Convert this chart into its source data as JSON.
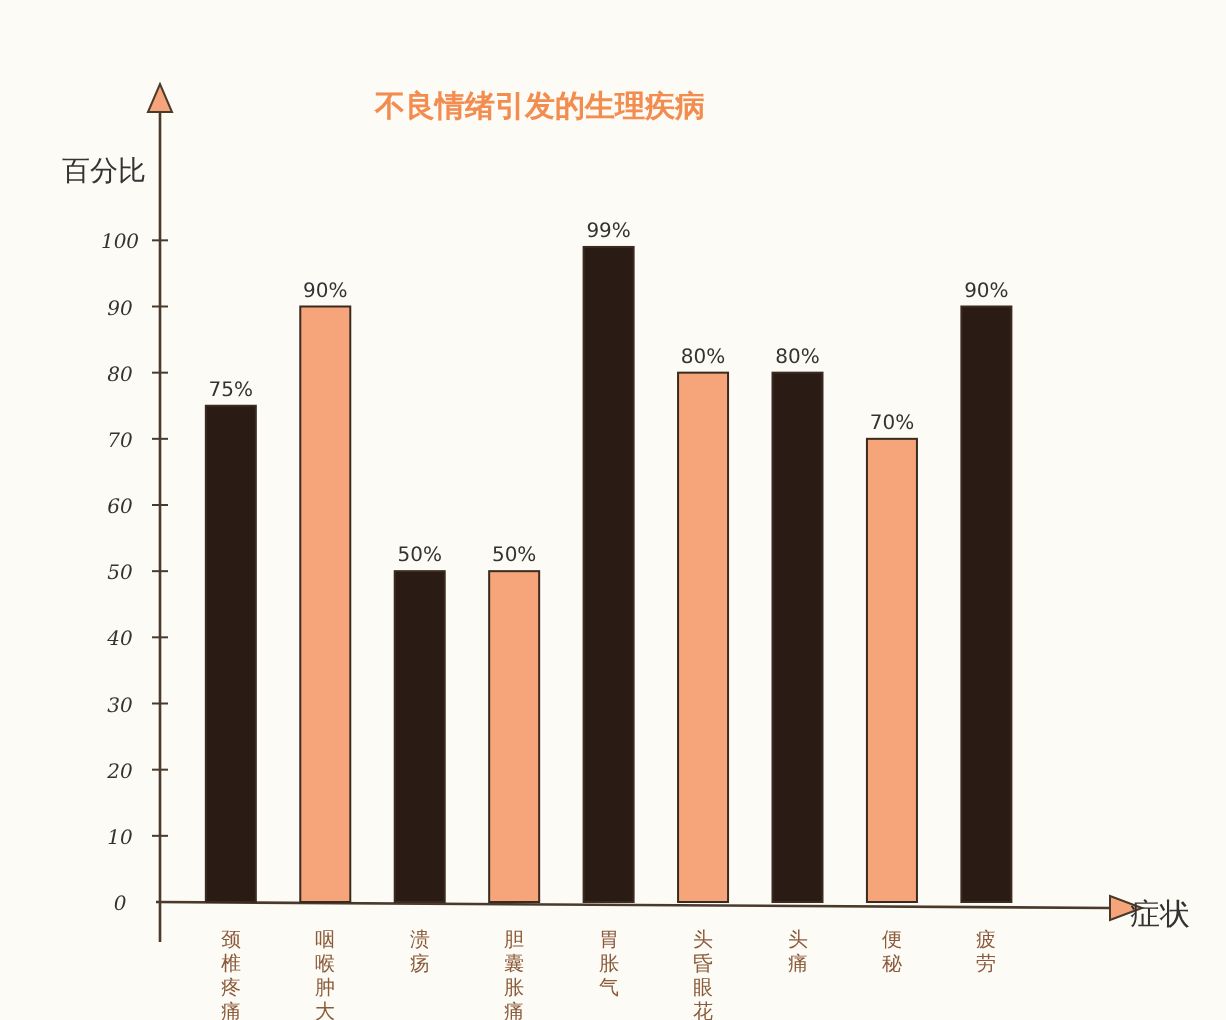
{
  "chart_data": {
    "type": "bar",
    "title": "不良情绪引发的生理疾病",
    "ylabel": "百分比",
    "xlabel": "症状",
    "categories": [
      "颈椎疼痛",
      "咽喉肿大",
      "溃疡",
      "胆囊胀痛",
      "胃胀气",
      "头昏眼花",
      "头痛",
      "便秘",
      "疲劳"
    ],
    "values": [
      75,
      90,
      50,
      50,
      99,
      80,
      80,
      70,
      90
    ],
    "value_labels": [
      "75%",
      "90%",
      "50%",
      "50%",
      "99%",
      "80%",
      "80%",
      "70%",
      "90%"
    ],
    "colors": [
      "#2b1b15",
      "#f6a57a",
      "#2b1b15",
      "#f6a57a",
      "#2b1b15",
      "#f6a57a",
      "#2b1b15",
      "#f6a57a",
      "#2b1b15"
    ],
    "ylim": [
      0,
      120
    ],
    "yticks": [
      0,
      10,
      20,
      30,
      40,
      50,
      60,
      70,
      80,
      90,
      100
    ]
  }
}
